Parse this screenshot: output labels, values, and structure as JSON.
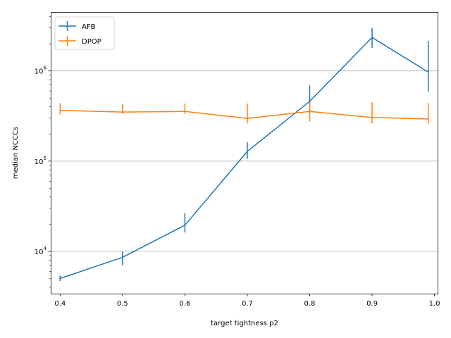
{
  "chart_data": {
    "type": "line",
    "title": "",
    "xlabel": "target tightness p2",
    "ylabel": "median NCCCs",
    "yscale": "log",
    "xlim": [
      0.385,
      1.005
    ],
    "ylim": [
      3400,
      4500000
    ],
    "x_ticks": [
      "0.4",
      "0.5",
      "0.6",
      "0.7",
      "0.8",
      "0.9",
      "1.0"
    ],
    "y_ticks": [
      {
        "value": 10000,
        "base": "10",
        "exp": "4"
      },
      {
        "value": 100000,
        "base": "10",
        "exp": "5"
      },
      {
        "value": 1000000,
        "base": "10",
        "exp": "6"
      }
    ],
    "grid": "horizontal major",
    "legend_position": "top-left",
    "series": [
      {
        "name": "AFB",
        "color": "#1f77b4",
        "x": [
          0.4,
          0.5,
          0.6,
          0.7,
          0.8,
          0.9,
          0.99
        ],
        "y": [
          5000,
          8600,
          19500,
          128000,
          460000,
          2350000,
          970000
        ],
        "err_low": [
          4700,
          7000,
          16200,
          106000,
          330000,
          1800000,
          590000
        ],
        "err_high": [
          5400,
          10000,
          26500,
          162000,
          690000,
          3000000,
          2150000
        ]
      },
      {
        "name": "DPOP",
        "color": "#ff7f0e",
        "x": [
          0.4,
          0.5,
          0.6,
          0.7,
          0.8,
          0.9,
          0.99
        ],
        "y": [
          365000,
          350000,
          355000,
          298000,
          355000,
          305000,
          293000
        ],
        "err_low": [
          330000,
          335000,
          335000,
          262000,
          275000,
          262000,
          260000
        ],
        "err_high": [
          440000,
          430000,
          435000,
          435000,
          450000,
          450000,
          440000
        ]
      }
    ]
  }
}
